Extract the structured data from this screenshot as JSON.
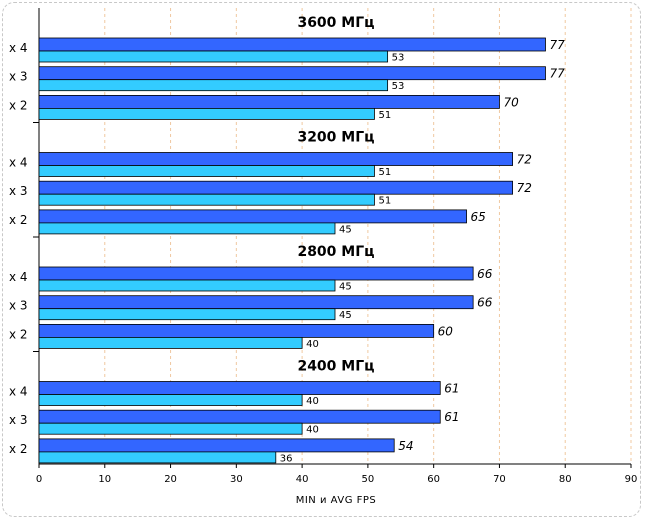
{
  "chart_data": {
    "type": "bar",
    "orientation": "horizontal",
    "xlabel": "MIN и AVG FPS",
    "xlim": [
      0,
      90
    ],
    "xticks": [
      0,
      10,
      20,
      30,
      40,
      50,
      60,
      70,
      80,
      90
    ],
    "grid": "vertical-dashed",
    "series": [
      {
        "name": "AVG FPS",
        "color": "#3366ff"
      },
      {
        "name": "MIN FPS",
        "color": "#33ccff"
      }
    ],
    "groups": [
      {
        "title": "3600 МГц",
        "rows": [
          {
            "label": "x 4",
            "avg": 77,
            "min": 53
          },
          {
            "label": "x 3",
            "avg": 77,
            "min": 53
          },
          {
            "label": "x 2",
            "avg": 70,
            "min": 51
          }
        ]
      },
      {
        "title": "3200 МГц",
        "rows": [
          {
            "label": "x 4",
            "avg": 72,
            "min": 51
          },
          {
            "label": "x 3",
            "avg": 72,
            "min": 51
          },
          {
            "label": "x 2",
            "avg": 65,
            "min": 45
          }
        ]
      },
      {
        "title": "2800 МГц",
        "rows": [
          {
            "label": "x 4",
            "avg": 66,
            "min": 45
          },
          {
            "label": "x 3",
            "avg": 66,
            "min": 45
          },
          {
            "label": "x 2",
            "avg": 60,
            "min": 40
          }
        ]
      },
      {
        "title": "2400 МГц",
        "rows": [
          {
            "label": "x 4",
            "avg": 61,
            "min": 40
          },
          {
            "label": "x 3",
            "avg": 61,
            "min": 40
          },
          {
            "label": "x 2",
            "avg": 54,
            "min": 36
          }
        ]
      }
    ]
  }
}
